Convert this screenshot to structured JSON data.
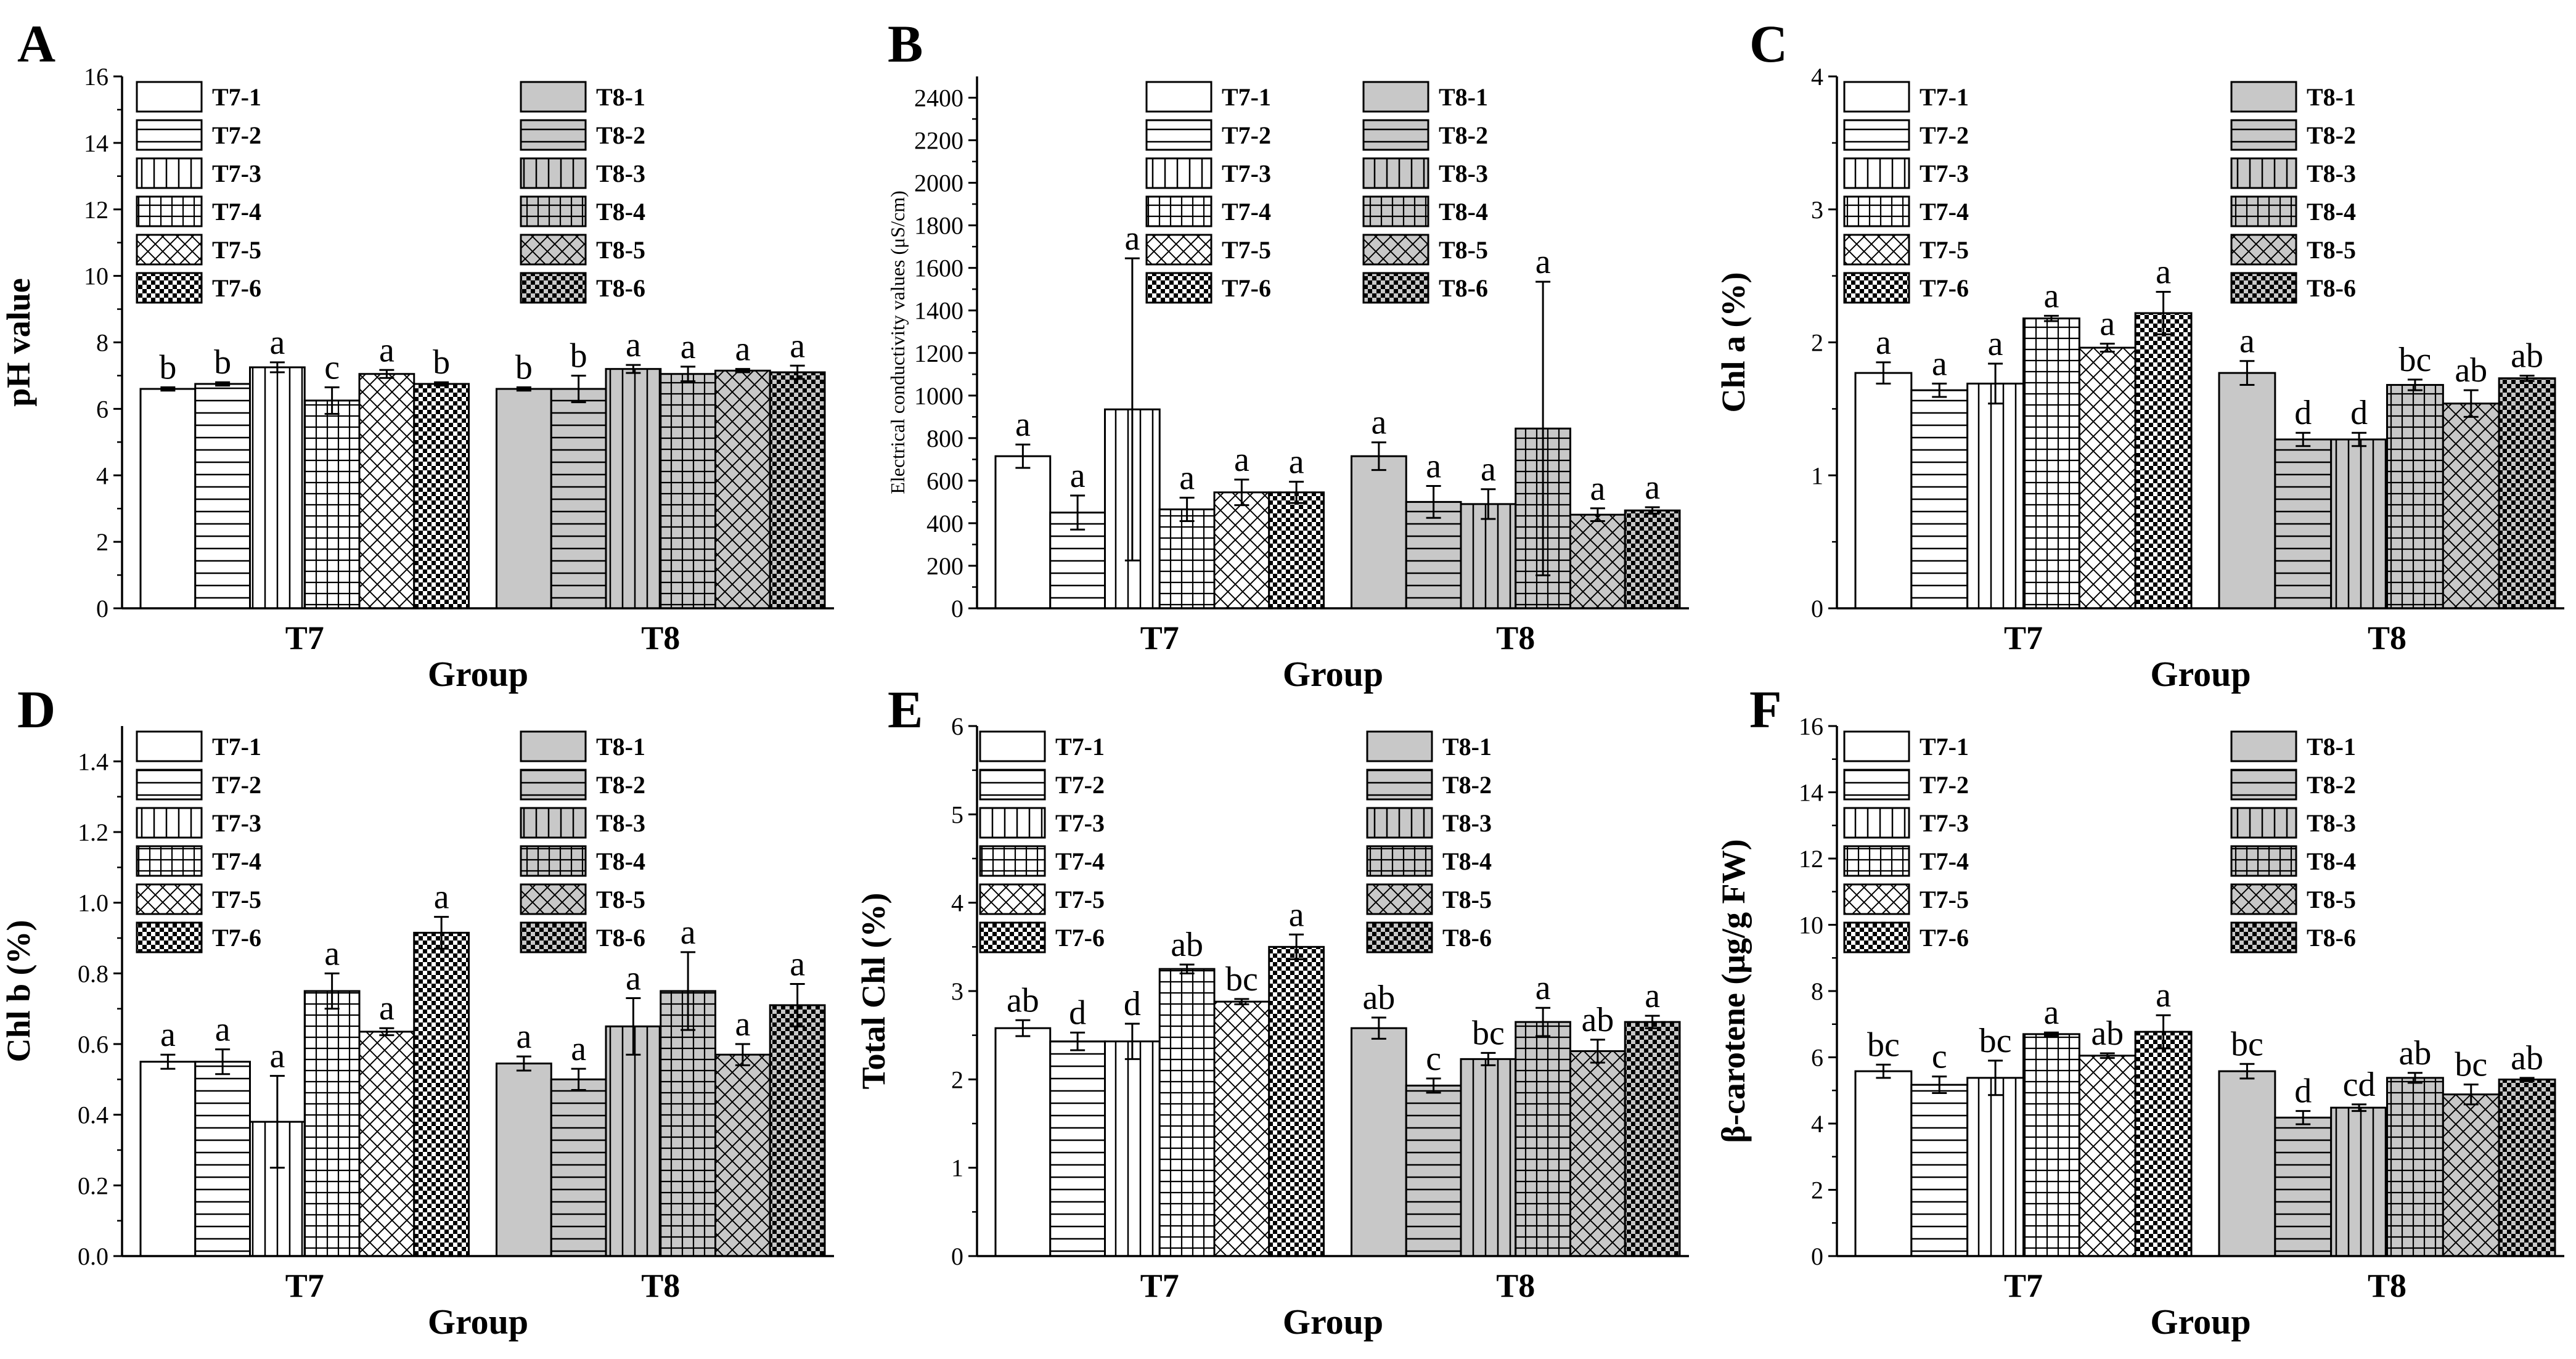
{
  "figure": {
    "colors": {
      "series_T7": "#ffffff",
      "series_T8": "#c8c8c8",
      "axis": "#000000"
    },
    "patterns": [
      "solid",
      "hlines",
      "vlines",
      "grid",
      "crosshatch",
      "checker"
    ]
  },
  "chart_data": [
    {
      "panel": "A",
      "type": "bar",
      "title": "",
      "ylabel": "pH value",
      "xlabel": "Group",
      "ylim": [
        0,
        16
      ],
      "yticks": [
        "0",
        "2",
        "4",
        "6",
        "8",
        "10",
        "12",
        "14",
        "16"
      ],
      "groups": [
        "T7",
        "T8"
      ],
      "legend": {
        "placement": "top",
        "t7": [
          "T7-1",
          "T7-2",
          "T7-3",
          "T7-4",
          "T7-5",
          "T7-6"
        ],
        "t8": [
          "T8-1",
          "T8-2",
          "T8-3",
          "T8-4",
          "T8-5",
          "T8-6"
        ]
      },
      "series": [
        {
          "group": "T7",
          "values": [
            6.6,
            6.75,
            7.25,
            6.25,
            7.05,
            6.75
          ],
          "errors": [
            0.05,
            0.05,
            0.15,
            0.4,
            0.12,
            0.05
          ],
          "labels": [
            "b",
            "b",
            "a",
            "c",
            "a",
            "b"
          ]
        },
        {
          "group": "T8",
          "values": [
            6.6,
            6.6,
            7.2,
            7.05,
            7.15,
            7.1
          ],
          "errors": [
            0.05,
            0.4,
            0.12,
            0.22,
            0.05,
            0.2
          ],
          "labels": [
            "b",
            "b",
            "a",
            "a",
            "a",
            "a"
          ]
        }
      ]
    },
    {
      "panel": "B",
      "type": "bar",
      "title": "",
      "ylabel": "Electrical conductivity values (μS/cm)",
      "xlabel": "Group",
      "ylim": [
        0,
        2500
      ],
      "yticks": [
        "0",
        "200",
        "400",
        "600",
        "800",
        "1000",
        "1200",
        "1400",
        "1600",
        "1800",
        "2000",
        "2200",
        "2400"
      ],
      "groups": [
        "T7",
        "T8"
      ],
      "legend": {
        "placement": "top-right",
        "t7": [
          "T7-1",
          "T7-2",
          "T7-3",
          "T7-4",
          "T7-5",
          "T7-6"
        ],
        "t8": [
          "T8-1",
          "T8-2",
          "T8-3",
          "T8-4",
          "T8-5",
          "T8-6"
        ]
      },
      "series": [
        {
          "group": "T7",
          "values": [
            715,
            450,
            935,
            465,
            545,
            545
          ],
          "errors": [
            55,
            80,
            710,
            55,
            60,
            50
          ],
          "labels": [
            "a",
            "a",
            "a",
            "a",
            "a",
            "a"
          ]
        },
        {
          "group": "T8",
          "values": [
            715,
            500,
            490,
            845,
            440,
            460
          ],
          "errors": [
            65,
            75,
            70,
            690,
            30,
            15
          ],
          "labels": [
            "a",
            "a",
            "a",
            "a",
            "a",
            "a"
          ]
        }
      ]
    },
    {
      "panel": "C",
      "type": "bar",
      "title": "",
      "ylabel": "Chl a (%)",
      "xlabel": "Group",
      "ylim": [
        0,
        4
      ],
      "yticks": [
        "0",
        "1",
        "2",
        "3",
        "4"
      ],
      "groups": [
        "T7",
        "T8"
      ],
      "legend": {
        "placement": "top",
        "t7": [
          "T7-1",
          "T7-2",
          "T7-3",
          "T7-4",
          "T7-5",
          "T7-6"
        ],
        "t8": [
          "T8-1",
          "T8-2",
          "T8-3",
          "T8-4",
          "T8-5",
          "T8-6"
        ]
      },
      "series": [
        {
          "group": "T7",
          "values": [
            1.77,
            1.64,
            1.69,
            2.18,
            1.96,
            2.22
          ],
          "errors": [
            0.08,
            0.05,
            0.15,
            0.02,
            0.03,
            0.16
          ],
          "labels": [
            "a",
            "a",
            "a",
            "a",
            "a",
            "a"
          ]
        },
        {
          "group": "T8",
          "values": [
            1.77,
            1.27,
            1.27,
            1.68,
            1.54,
            1.73
          ],
          "errors": [
            0.09,
            0.05,
            0.05,
            0.04,
            0.1,
            0.02
          ],
          "labels": [
            "a",
            "d",
            "d",
            "bc",
            "ab",
            "ab"
          ]
        }
      ]
    },
    {
      "panel": "D",
      "type": "bar",
      "title": "",
      "ylabel": "Chl b (%)",
      "xlabel": "Group",
      "ylim": [
        0,
        1.5
      ],
      "yticks": [
        "0.0",
        "0.2",
        "0.4",
        "0.6",
        "0.8",
        "1.0",
        "1.2",
        "1.4"
      ],
      "groups": [
        "T7",
        "T8"
      ],
      "legend": {
        "placement": "top",
        "t7": [
          "T7-1",
          "T7-2",
          "T7-3",
          "T7-4",
          "T7-5",
          "T7-6"
        ],
        "t8": [
          "T8-1",
          "T8-2",
          "T8-3",
          "T8-4",
          "T8-5",
          "T8-6"
        ]
      },
      "series": [
        {
          "group": "T7",
          "values": [
            0.55,
            0.55,
            0.38,
            0.75,
            0.635,
            0.915
          ],
          "errors": [
            0.02,
            0.035,
            0.13,
            0.05,
            0.01,
            0.045
          ],
          "labels": [
            "a",
            "a",
            "a",
            "a",
            "a",
            "a"
          ]
        },
        {
          "group": "T8",
          "values": [
            0.545,
            0.5,
            0.65,
            0.75,
            0.57,
            0.71
          ],
          "errors": [
            0.02,
            0.03,
            0.08,
            0.11,
            0.03,
            0.06
          ],
          "labels": [
            "a",
            "a",
            "a",
            "a",
            "a",
            "a"
          ]
        }
      ]
    },
    {
      "panel": "E",
      "type": "bar",
      "title": "",
      "ylabel": "Total Chl (%)",
      "xlabel": "Group",
      "ylim": [
        0,
        6
      ],
      "yticks": [
        "0",
        "1",
        "2",
        "3",
        "4",
        "5",
        "6"
      ],
      "groups": [
        "T7",
        "T8"
      ],
      "legend": {
        "placement": "top",
        "t7": [
          "T7-1",
          "T7-2",
          "T7-3",
          "T7-4",
          "T7-5",
          "T7-6"
        ],
        "t8": [
          "T8-1",
          "T8-2",
          "T8-3",
          "T8-4",
          "T8-5",
          "T8-6"
        ]
      },
      "series": [
        {
          "group": "T7",
          "values": [
            2.58,
            2.43,
            2.43,
            3.25,
            2.88,
            3.5
          ],
          "errors": [
            0.09,
            0.1,
            0.2,
            0.05,
            0.03,
            0.14
          ],
          "labels": [
            "ab",
            "d",
            "d",
            "ab",
            "bc",
            "a"
          ]
        },
        {
          "group": "T8",
          "values": [
            2.58,
            1.93,
            2.23,
            2.65,
            2.32,
            2.65
          ],
          "errors": [
            0.12,
            0.08,
            0.07,
            0.16,
            0.13,
            0.07
          ],
          "labels": [
            "ab",
            "c",
            "bc",
            "a",
            "ab",
            "a"
          ]
        }
      ]
    },
    {
      "panel": "F",
      "type": "bar",
      "title": "",
      "ylabel": "β-carotene (μg/g FW)",
      "xlabel": "Group",
      "ylim": [
        0,
        16
      ],
      "yticks": [
        "0",
        "2",
        "4",
        "6",
        "8",
        "10",
        "12",
        "14",
        "16"
      ],
      "groups": [
        "T7",
        "T8"
      ],
      "legend": {
        "placement": "top",
        "t7": [
          "T7-1",
          "T7-2",
          "T7-3",
          "T7-4",
          "T7-5",
          "T7-6"
        ],
        "t8": [
          "T8-1",
          "T8-2",
          "T8-3",
          "T8-4",
          "T8-5",
          "T8-6"
        ]
      },
      "series": [
        {
          "group": "T7",
          "values": [
            5.58,
            5.17,
            5.38,
            6.7,
            6.05,
            6.77
          ],
          "errors": [
            0.2,
            0.25,
            0.52,
            0.05,
            0.07,
            0.5
          ],
          "labels": [
            "bc",
            "c",
            "bc",
            "a",
            "ab",
            "a"
          ]
        },
        {
          "group": "T8",
          "values": [
            5.58,
            4.18,
            4.48,
            5.38,
            4.88,
            5.33
          ],
          "errors": [
            0.22,
            0.2,
            0.1,
            0.15,
            0.3,
            0.05
          ],
          "labels": [
            "bc",
            "d",
            "cd",
            "ab",
            "bc",
            "ab"
          ]
        }
      ]
    }
  ]
}
